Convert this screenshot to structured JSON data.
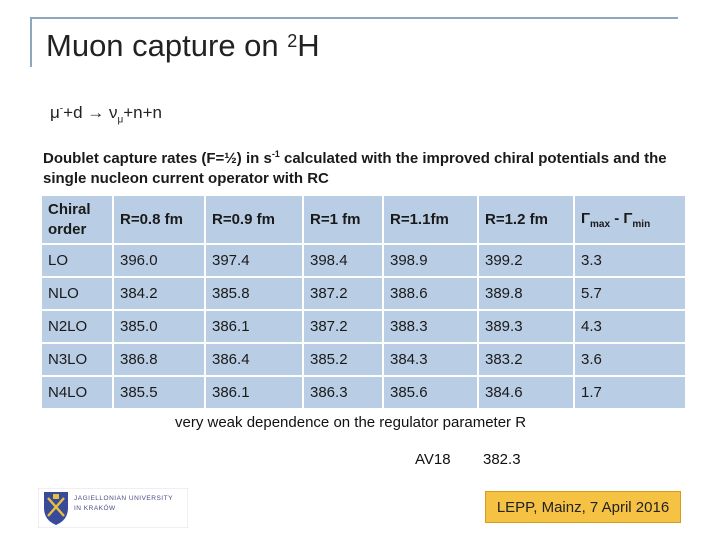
{
  "title": {
    "main": "Muon capture on ",
    "sup": "2",
    "tail": "H"
  },
  "reaction": {
    "mu": "μ",
    "mu_sup": "-",
    "plus_d": "+d → ν",
    "nu_sub": "μ",
    "rest": "+n+n"
  },
  "description": {
    "part1": "Doublet capture rates (F=½)  in s",
    "sup": "-1",
    "part2": " calculated with the improved chiral potentials and the single nucleon current operator with RC"
  },
  "table": {
    "headers": {
      "h0": "Chiral order",
      "h1": "R=0.8 fm",
      "h2": "R=0.9 fm",
      "h3": "R=1 fm",
      "h4": "R=1.1fm",
      "h5": "R=1.2 fm",
      "h6_a": "Γ",
      "h6_sub1": "max",
      "h6_b": " - Γ",
      "h6_sub2": "min"
    },
    "rows": [
      [
        "LO",
        "396.0",
        "397.4",
        "398.4",
        "398.9",
        "399.2",
        "3.3"
      ],
      [
        "NLO",
        "384.2",
        "385.8",
        "387.2",
        "388.6",
        "389.8",
        "5.7"
      ],
      [
        "N2LO",
        "385.0",
        "386.1",
        "387.2",
        "388.3",
        "389.3",
        "4.3"
      ],
      [
        "N3LO",
        "386.8",
        "386.4",
        "385.2",
        "384.3",
        "383.2",
        "3.6"
      ],
      [
        "N4LO",
        "385.5",
        "386.1",
        "386.3",
        "385.6",
        "384.6",
        "1.7"
      ]
    ]
  },
  "note": "very weak dependence on the regulator parameter R",
  "av18": {
    "label": "AV18",
    "value": "382.3"
  },
  "logo": {
    "line1": "JAGIELLONIAN UNIVERSITY",
    "line2": "IN KRAKÓW",
    "icon": "university-crest-icon"
  },
  "footer": "LEPP, Mainz, 7 April 2016",
  "colors": {
    "table_bg": "#b9cde5",
    "footer_bg": "#f6c244",
    "frame": "#8fa6bf"
  }
}
